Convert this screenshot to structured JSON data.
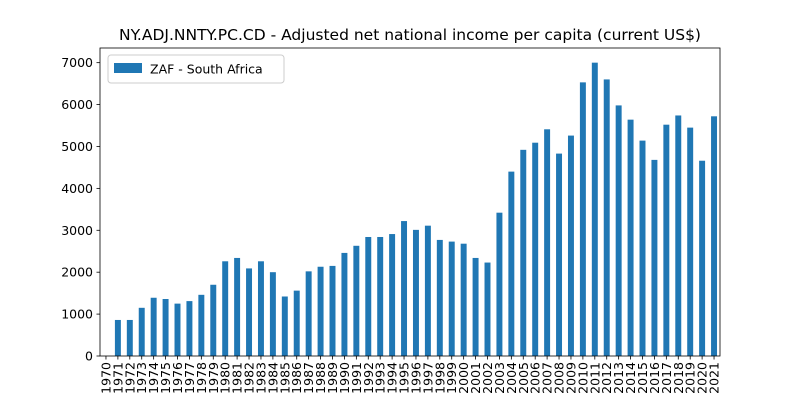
{
  "chart_data": {
    "type": "bar",
    "title": "NY.ADJ.NNTY.PC.CD - Adjusted net national income per capita (current US$)",
    "xlabel": "",
    "ylabel": "",
    "categories": [
      "1970",
      "1971",
      "1972",
      "1973",
      "1974",
      "1975",
      "1976",
      "1977",
      "1978",
      "1979",
      "1980",
      "1981",
      "1982",
      "1983",
      "1984",
      "1985",
      "1986",
      "1987",
      "1988",
      "1989",
      "1990",
      "1991",
      "1992",
      "1993",
      "1994",
      "1995",
      "1996",
      "1997",
      "1998",
      "1999",
      "2000",
      "2001",
      "2002",
      "2003",
      "2004",
      "2005",
      "2006",
      "2007",
      "2008",
      "2009",
      "2010",
      "2011",
      "2012",
      "2013",
      "2014",
      "2015",
      "2016",
      "2017",
      "2018",
      "2019",
      "2020",
      "2021"
    ],
    "series": [
      {
        "name": "ZAF - South Africa",
        "color": "#1f77b4",
        "values": [
          null,
          860,
          860,
          1150,
          1390,
          1360,
          1250,
          1310,
          1460,
          1700,
          2260,
          2340,
          2090,
          2260,
          2000,
          1420,
          1560,
          2020,
          2130,
          2150,
          2460,
          2630,
          2840,
          2840,
          2910,
          3220,
          3010,
          3110,
          2770,
          2730,
          2680,
          2340,
          2230,
          3420,
          4400,
          4920,
          5090,
          5410,
          4830,
          5260,
          6530,
          7000,
          6600,
          5980,
          5640,
          5140,
          4680,
          5520,
          5740,
          5450,
          4660,
          5720
        ]
      }
    ],
    "ylim": [
      0,
      7350
    ],
    "yticks": [
      0,
      1000,
      2000,
      3000,
      4000,
      5000,
      6000,
      7000
    ],
    "grid": false,
    "legend_position": "top-left"
  }
}
